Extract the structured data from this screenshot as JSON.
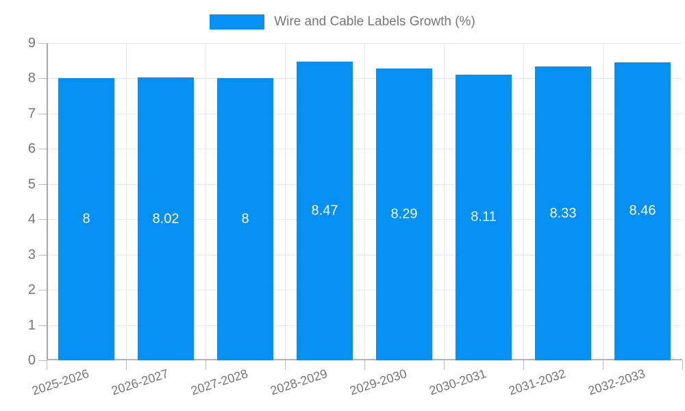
{
  "legend": {
    "label": "Wire and Cable Labels Growth (%)"
  },
  "chart_data": {
    "type": "bar",
    "title": "Wire and Cable Labels Growth (%)",
    "categories": [
      "2025-2026",
      "2026-2027",
      "2027-2028",
      "2028-2029",
      "2029-2030",
      "2030-2031",
      "2031-2032",
      "2032-2033"
    ],
    "values": [
      8,
      8.02,
      8,
      8.47,
      8.29,
      8.11,
      8.33,
      8.46
    ],
    "value_labels": [
      "8",
      "8.02",
      "8",
      "8.47",
      "8.29",
      "8.11",
      "8.33",
      "8.46"
    ],
    "xlabel": "",
    "ylabel": "",
    "ylim": [
      0,
      9
    ],
    "ytick_step": 1,
    "ytick_labels": [
      "0",
      "1",
      "2",
      "3",
      "4",
      "5",
      "6",
      "7",
      "8",
      "9"
    ],
    "grid": true,
    "legend_position": "top",
    "colors": {
      "bar": "#0590F2",
      "grid": "#e7e7e7",
      "axis": "#a6a6a6",
      "tick": "#b9b9b9",
      "text": "#757575",
      "value_label": "#ffffff"
    }
  }
}
